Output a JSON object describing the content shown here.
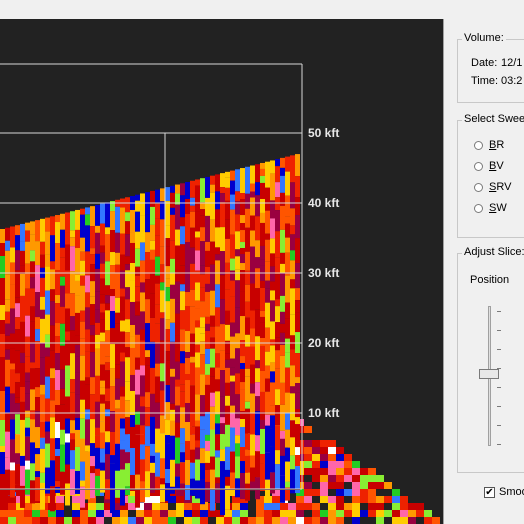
{
  "volume": {
    "title": "Volume:",
    "date_label": "Date:",
    "date_value": "12/1",
    "time_label": "Time:",
    "time_value": "03:2"
  },
  "sweep": {
    "title": "Select Sweep",
    "options": [
      {
        "accel": "B",
        "rest": "R",
        "selected": false
      },
      {
        "accel": "B",
        "rest": "V",
        "selected": false
      },
      {
        "accel": "S",
        "rest": "RV",
        "selected": false
      },
      {
        "accel": "S",
        "rest": "W",
        "selected": false
      }
    ]
  },
  "slice": {
    "title": "Adjust Slice:",
    "position_label": "Position"
  },
  "smooth": {
    "label": "Smoo",
    "checked": true,
    "check_glyph": "✔"
  },
  "altitude_labels": [
    "50 kft",
    "40 kft",
    "30 kft",
    "20 kft",
    "10 kft"
  ],
  "colors": {
    "background": "#222222",
    "panel": "#f0f0f0",
    "grid": "#d8d8d8",
    "palette": [
      "#c80000",
      "#9a0040",
      "#ff9900",
      "#ffcc00",
      "#0000cc",
      "#3377ff",
      "#88ee33",
      "#ff66aa",
      "#ee2200",
      "#ff5500",
      "#ffffff",
      "#22cc22"
    ]
  }
}
